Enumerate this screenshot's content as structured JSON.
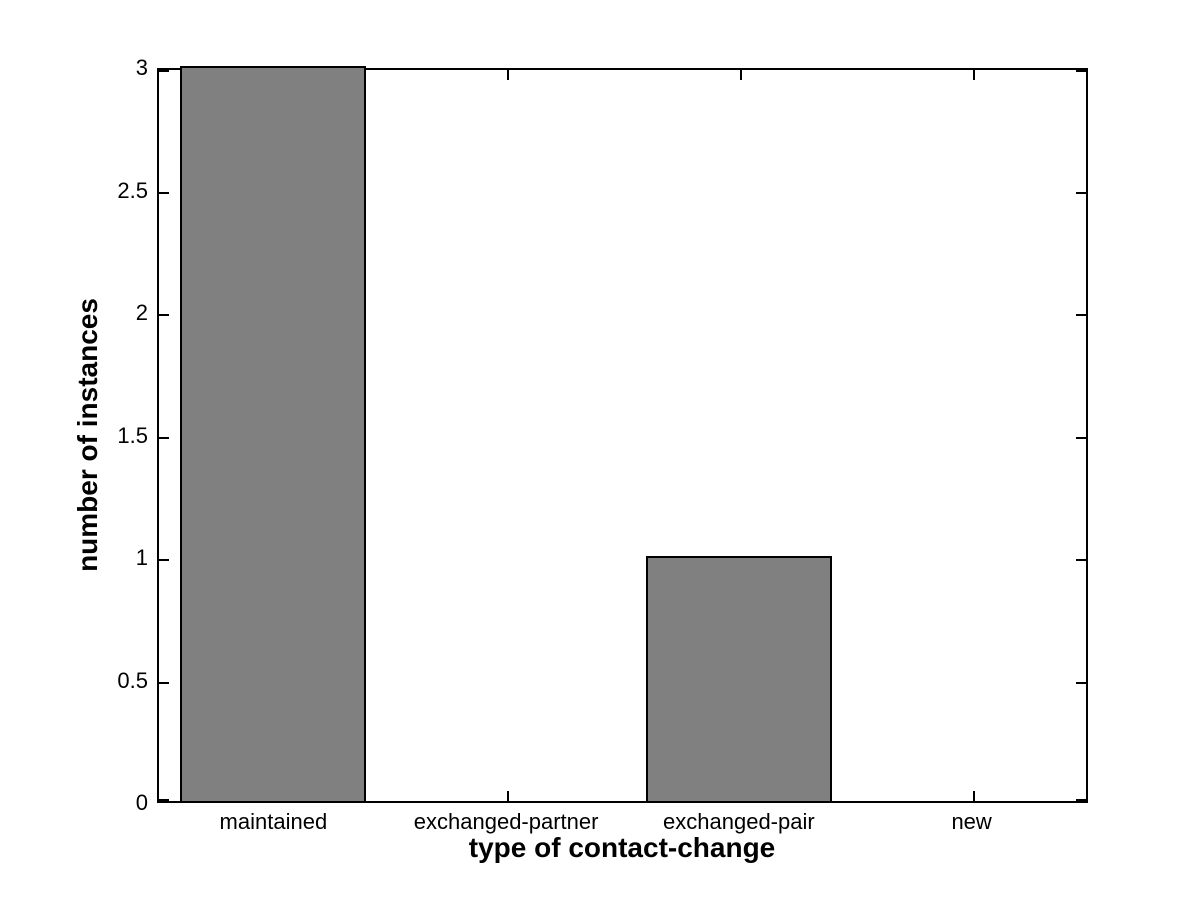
{
  "chart_data": {
    "type": "bar",
    "categories": [
      "maintained",
      "exchanged-partner",
      "exchanged-pair",
      "new"
    ],
    "values": [
      3,
      0,
      1,
      0
    ],
    "title": "",
    "xlabel": "type of contact-change",
    "ylabel": "number of instances",
    "ylim": [
      0,
      3
    ],
    "yticks": [
      0,
      0.5,
      1,
      1.5,
      2,
      2.5,
      3
    ],
    "ytick_labels": [
      "0",
      "0.5",
      "1",
      "1.5",
      "2",
      "2.5",
      "3"
    ],
    "bar_width_fraction": 0.8,
    "bar_fill_color": "#808080",
    "bar_edge_color": "#000000",
    "axis_color": "#000000",
    "background_color": "#ffffff",
    "grid": false,
    "legend": null,
    "tick_direction": "in",
    "box": true
  }
}
